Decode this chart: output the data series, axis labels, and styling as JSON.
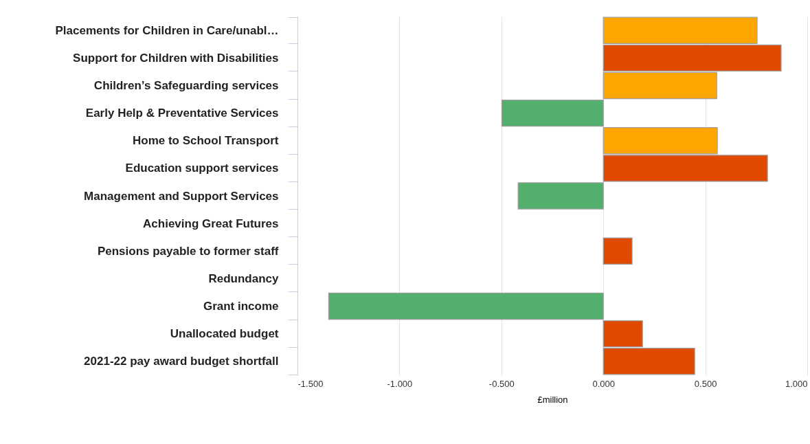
{
  "chart_data": {
    "type": "bar",
    "orientation": "horizontal",
    "xlabel": "£million",
    "categories": [
      "Placements for Children in Care/unabl…",
      "Support for Children with Disabilities",
      "Children’s Safeguarding services",
      "Early Help & Preventative Services",
      "Home to School Transport",
      "Education support services",
      "Management and Support Services",
      "Achieving Great Futures",
      "Pensions payable to former staff",
      "Redundancy",
      "Grant income",
      "Unallocated budget",
      "2021-22 pay award budget shortfall"
    ],
    "values": [
      0.754,
      0.872,
      0.556,
      -0.498,
      0.559,
      0.805,
      -0.418,
      null,
      0.141,
      null,
      -1.347,
      0.192,
      0.448
    ],
    "colors": [
      "#ffa500",
      "#e04a00",
      "#ffa500",
      "#52b06c",
      "#ffa500",
      "#e04a00",
      "#52b06c",
      "#e04a00",
      "#e04a00",
      "#e04a00",
      "#52b06c",
      "#e04a00",
      "#e04a00"
    ],
    "xlim": [
      -1.5,
      1.0
    ],
    "xticks": [
      {
        "value": -1.5,
        "label": "-1.500"
      },
      {
        "value": -1.0,
        "label": "-1.000"
      },
      {
        "value": -0.5,
        "label": "-0.500"
      },
      {
        "value": 0,
        "label": "0.000"
      },
      {
        "value": 0.5,
        "label": "0.500"
      },
      {
        "value": 1.0,
        "label": "1.000"
      }
    ],
    "grid": "x"
  }
}
